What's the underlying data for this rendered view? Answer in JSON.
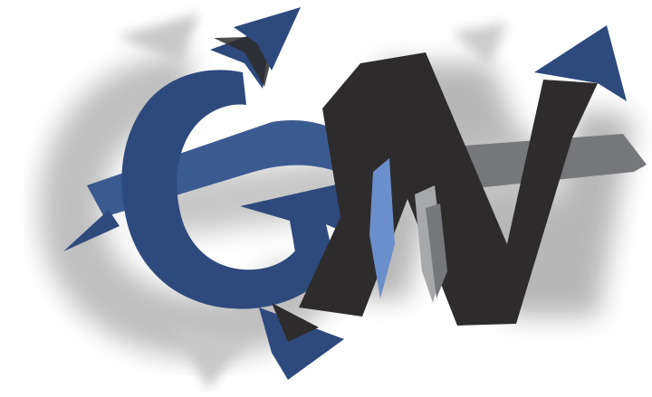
{
  "logo": {
    "text": "GN",
    "colors": {
      "background": "#ffffff",
      "blue": "#2e4a7d",
      "blue_light": "#6b8fca",
      "dark": "#2e2b2c",
      "gray": "#76777a",
      "gray_light": "#a7a8aa",
      "shadow": "#8c8c8c"
    }
  }
}
